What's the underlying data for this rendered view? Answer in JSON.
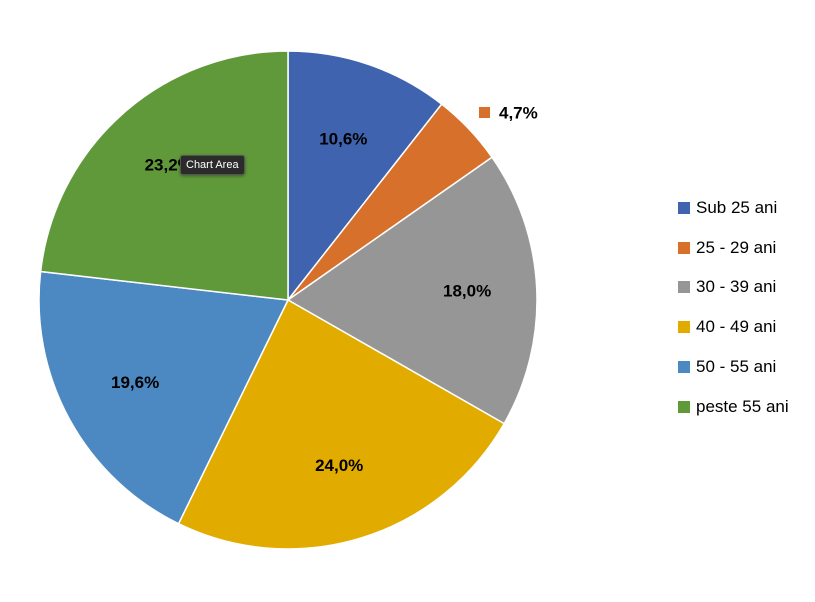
{
  "chart_data": {
    "type": "pie",
    "categories": [
      "Sub 25 ani",
      "25 - 29 ani",
      "30 - 39 ani",
      "40 - 49 ani",
      "50 - 55 ani",
      "peste 55 ani"
    ],
    "values": [
      10.6,
      4.7,
      18.0,
      24.0,
      19.6,
      23.2
    ],
    "data_labels": [
      "10,6%",
      "4,7%",
      "18,0%",
      "24,0%",
      "19,6%",
      "23,2%"
    ],
    "colors": [
      "#3F63AE",
      "#D7702A",
      "#969696",
      "#E2AB00",
      "#4C88C1",
      "#60993A"
    ],
    "legend_position": "right",
    "start_angle_deg": 0,
    "direction": "clockwise"
  },
  "tooltip": {
    "text": "Chart Area"
  }
}
